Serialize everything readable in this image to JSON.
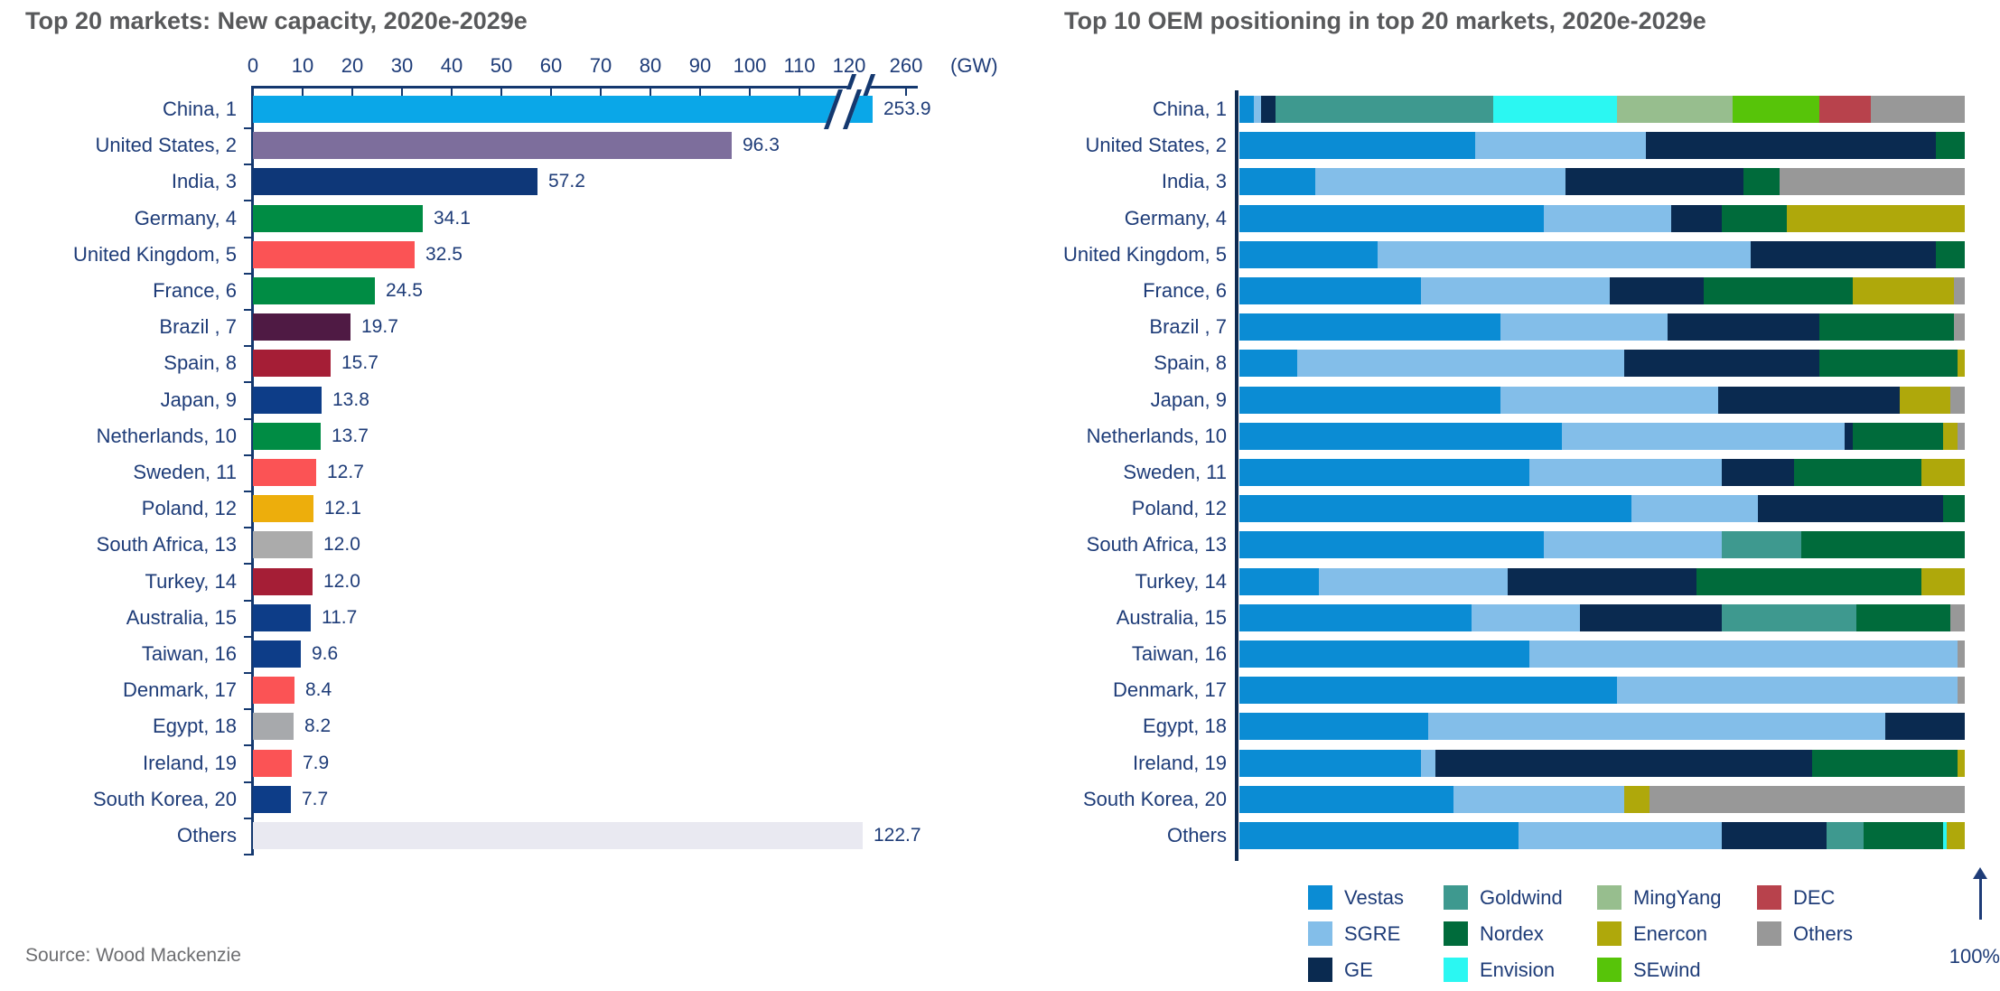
{
  "source_note": "Source: Wood Mackenzie",
  "chart_data": [
    {
      "type": "bar",
      "orientation": "horizontal",
      "title": "Top 20 markets: New capacity, 2020e-2029e",
      "unit_label": "(GW)",
      "axis_ticks": [
        "0",
        "10",
        "20",
        "30",
        "40",
        "50",
        "60",
        "70",
        "80",
        "90",
        "100",
        "110",
        "120"
      ],
      "axis_break_tick": "260",
      "has_axis_break": true,
      "broken_bar_index": 0,
      "categories": [
        "China, 1",
        "United States, 2",
        "India, 3",
        "Germany, 4",
        "United Kingdom, 5",
        "France, 6",
        "Brazil , 7",
        "Spain, 8",
        "Japan, 9",
        "Netherlands, 10",
        "Sweden, 11",
        "Poland, 12",
        "South Africa, 13",
        "Turkey, 14",
        "Australia, 15",
        "Taiwan, 16",
        "Denmark, 17",
        "Egypt, 18",
        "Ireland, 19",
        "South Korea, 20",
        "Others"
      ],
      "values": [
        253.9,
        96.3,
        57.2,
        34.1,
        32.5,
        24.5,
        19.7,
        15.7,
        13.8,
        13.7,
        12.7,
        12.1,
        12.0,
        12.0,
        11.7,
        9.6,
        8.4,
        8.2,
        7.9,
        7.7,
        122.7
      ],
      "value_labels": [
        "253.9",
        "96.3",
        "57.2",
        "34.1",
        "32.5",
        "24.5",
        "19.7",
        "15.7",
        "13.8",
        "13.7",
        "12.7",
        "12.1",
        "12.0",
        "12.0",
        "11.7",
        "9.6",
        "8.4",
        "8.2",
        "7.9",
        "7.7",
        "122.7"
      ],
      "bar_colors": [
        "#0AA7E8",
        "#7D6E9C",
        "#0E3778",
        "#008C44",
        "#FB5355",
        "#008C44",
        "#4F1A44",
        "#A51E36",
        "#0D3D88",
        "#008C44",
        "#FB5355",
        "#EDAE0C",
        "#ABABAB",
        "#A51E36",
        "#0D3D88",
        "#0D3D88",
        "#FB5355",
        "#A7A9AC",
        "#FB5355",
        "#0D3D88",
        "#E9E9F1"
      ]
    },
    {
      "type": "stacked-bar",
      "orientation": "horizontal",
      "normalized": "each bar = 100%",
      "title": "Top 10 OEM positioning in top 20 markets, 2020e-2029e",
      "axis_label": "100%",
      "categories": [
        "China, 1",
        "United States, 2",
        "India, 3",
        "Germany, 4",
        "United Kingdom, 5",
        "France, 6",
        "Brazil , 7",
        "Spain, 8",
        "Japan, 9",
        "Netherlands, 10",
        "Sweden, 11",
        "Poland, 12",
        "South Africa, 13",
        "Turkey, 14",
        "Australia, 15",
        "Taiwan, 16",
        "Denmark, 17",
        "Egypt, 18",
        "Ireland, 19",
        "South Korea, 20",
        "Others"
      ],
      "stack_order": [
        "Vestas",
        "SGRE",
        "GE",
        "Goldwind",
        "Nordex",
        "Envision",
        "MingYang",
        "Enercon",
        "SEwind",
        "DEC",
        "Others"
      ],
      "series": [
        {
          "name": "Vestas",
          "color": "#0B8CD4",
          "values": [
            2,
            32.5,
            10.5,
            42,
            19,
            25,
            36,
            8,
            36,
            44.5,
            40,
            54,
            42,
            11,
            32,
            40,
            52,
            26,
            25,
            29.5,
            38.5
          ]
        },
        {
          "name": "SGRE",
          "color": "#83BEE9",
          "values": [
            1,
            23.5,
            34.5,
            17.5,
            51.5,
            26,
            23,
            45,
            30,
            39,
            26.5,
            17.5,
            24.5,
            26,
            15,
            59,
            47,
            63,
            2,
            23.5,
            28
          ]
        },
        {
          "name": "GE",
          "color": "#0A2A50",
          "values": [
            2,
            40,
            24.5,
            7,
            25.5,
            13,
            21,
            27,
            25,
            1,
            10,
            25.5,
            0,
            26,
            19.5,
            0,
            0,
            11,
            52,
            0,
            14.5
          ]
        },
        {
          "name": "Goldwind",
          "color": "#3E998F",
          "values": [
            30,
            0,
            0,
            0,
            0,
            0,
            0,
            0,
            0,
            0,
            0,
            0,
            11,
            0,
            18.5,
            0,
            0,
            0,
            0,
            0,
            5
          ]
        },
        {
          "name": "Nordex",
          "color": "#006B3B",
          "values": [
            0,
            4,
            5,
            9,
            4,
            20.5,
            18.5,
            19,
            0,
            12.5,
            17.5,
            3,
            22.5,
            31,
            13,
            0,
            0,
            0,
            20,
            0,
            11
          ]
        },
        {
          "name": "Envision",
          "color": "#2BF7F2",
          "values": [
            17,
            0,
            0,
            0,
            0,
            0,
            0,
            0,
            0,
            0,
            0,
            0,
            0,
            0,
            0,
            0,
            0,
            0,
            0,
            0,
            0.5
          ]
        },
        {
          "name": "MingYang",
          "color": "#97BE8E",
          "values": [
            16,
            0,
            0,
            0,
            0,
            0,
            0,
            0,
            0,
            0,
            0,
            0,
            0,
            0,
            0,
            0,
            0,
            0,
            0,
            0,
            0
          ]
        },
        {
          "name": "Enercon",
          "color": "#AFA80B",
          "values": [
            0,
            0,
            0,
            24.5,
            0,
            14,
            0,
            1,
            7,
            2,
            6,
            0,
            0,
            6,
            0,
            0,
            0,
            0,
            1,
            3.5,
            2.5
          ]
        },
        {
          "name": "SEwind",
          "color": "#57C409",
          "values": [
            12,
            0,
            0,
            0,
            0,
            0,
            0,
            0,
            0,
            0,
            0,
            0,
            0,
            0,
            0,
            0,
            0,
            0,
            0,
            0,
            0
          ]
        },
        {
          "name": "DEC",
          "color": "#B8424C",
          "values": [
            7,
            0,
            0,
            0,
            0,
            0,
            0,
            0,
            0,
            0,
            0,
            0,
            0,
            0,
            0,
            0,
            0,
            0,
            0,
            0,
            0
          ]
        },
        {
          "name": "Others",
          "color": "#989898",
          "values": [
            13,
            0,
            25.5,
            0,
            0,
            1.5,
            1.5,
            0,
            2,
            1,
            0,
            0,
            0,
            0,
            2,
            1,
            1,
            0,
            0,
            43.5,
            0
          ]
        }
      ],
      "legend_rows": [
        [
          "Vestas",
          "Goldwind",
          "MingYang",
          "DEC"
        ],
        [
          "SGRE",
          "Nordex",
          "Enercon",
          "Others"
        ],
        [
          "GE",
          "Envision",
          "SEwind"
        ]
      ]
    }
  ]
}
